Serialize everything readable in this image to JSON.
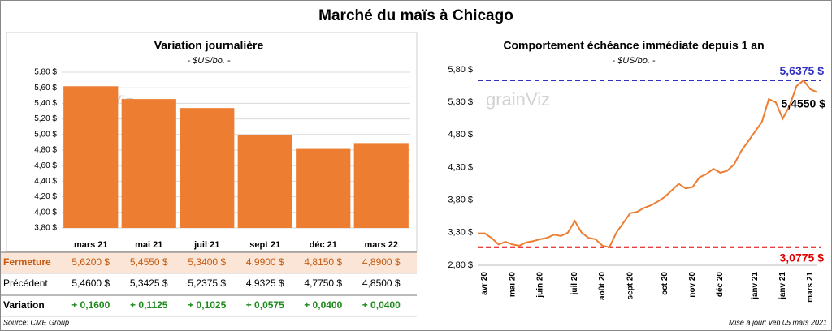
{
  "title": "Marché du maïs à Chicago",
  "chart_data": [
    {
      "type": "bar",
      "title": "Variation journalière",
      "subtitle": "- $US/bo. -",
      "watermark": "grainViz",
      "categories": [
        "mars 21",
        "mai 21",
        "juil 21",
        "sept 21",
        "déc 21",
        "mars 22"
      ],
      "series": [
        {
          "name": "Fermeture",
          "color": "#ed7d31",
          "values": [
            5.62,
            5.455,
            5.34,
            4.99,
            4.815,
            4.89
          ],
          "value_labels": [
            "5,6200 $",
            "5,4550 $",
            "5,3400 $",
            "4,9900 $",
            "4,8150 $",
            "4,8900 $"
          ]
        }
      ],
      "ylim": [
        3.8,
        5.8
      ],
      "yticks": [
        {
          "value": 3.8,
          "label": "3,80 $"
        },
        {
          "value": 4.0,
          "label": "4,00 $"
        },
        {
          "value": 4.2,
          "label": "4,20 $"
        },
        {
          "value": 4.4,
          "label": "4,40 $"
        },
        {
          "value": 4.6,
          "label": "4,60 $"
        },
        {
          "value": 4.8,
          "label": "4,80 $"
        },
        {
          "value": 5.0,
          "label": "5,00 $"
        },
        {
          "value": 5.2,
          "label": "5,20 $"
        },
        {
          "value": 5.4,
          "label": "5,40 $"
        },
        {
          "value": 5.6,
          "label": "5,60 $"
        },
        {
          "value": 5.8,
          "label": "5,80 $"
        }
      ],
      "grid": true
    },
    {
      "type": "line",
      "title": "Comportement échéance immédiate depuis 1 an",
      "subtitle": "- $US/bo. -",
      "watermark": "grainViz",
      "categories": [
        null,
        "avr 20",
        null,
        null,
        null,
        "mai 20",
        null,
        null,
        null,
        "juin 20",
        null,
        null,
        null,
        null,
        "juil 20",
        null,
        null,
        null,
        "août 20",
        null,
        null,
        null,
        "sept 20",
        null,
        null,
        null,
        null,
        "oct 20",
        null,
        null,
        null,
        "nov 20",
        null,
        null,
        null,
        "déc 20",
        null,
        null,
        null,
        null,
        "janv 21",
        null,
        null,
        null,
        "janv 21",
        null,
        null,
        null,
        "mars 21",
        null
      ],
      "series": [
        {
          "name": "Échéance immédiate",
          "color": "#ed7d31",
          "end_label": "5,4550 $",
          "values": [
            3.29,
            3.29,
            3.22,
            3.12,
            3.16,
            3.12,
            3.1,
            3.15,
            3.17,
            3.2,
            3.22,
            3.27,
            3.25,
            3.3,
            3.48,
            3.3,
            3.22,
            3.2,
            3.1,
            3.0775,
            3.3,
            3.45,
            3.6,
            3.62,
            3.68,
            3.72,
            3.78,
            3.85,
            3.95,
            4.05,
            3.98,
            4.0,
            4.15,
            4.2,
            4.28,
            4.22,
            4.25,
            4.35,
            4.55,
            4.7,
            4.85,
            5.0,
            5.35,
            5.3,
            5.05,
            5.25,
            5.55,
            5.6375,
            5.5,
            5.455
          ]
        }
      ],
      "reference_lines": [
        {
          "value": 5.6375,
          "label": "5,6375 $",
          "color": "#3030c0"
        },
        {
          "value": 3.0775,
          "label": "3,0775 $",
          "color": "#e00000"
        }
      ],
      "ylim": [
        2.8,
        5.8
      ],
      "yticks": [
        {
          "value": 2.8,
          "label": "2,80 $"
        },
        {
          "value": 3.3,
          "label": "3,30 $"
        },
        {
          "value": 3.8,
          "label": "3,80 $"
        },
        {
          "value": 4.3,
          "label": "4,30 $"
        },
        {
          "value": 4.8,
          "label": "4,80 $"
        },
        {
          "value": 5.3,
          "label": "5,30 $"
        },
        {
          "value": 5.8,
          "label": "5,80 $"
        }
      ],
      "grid": false
    }
  ],
  "table": {
    "rows": [
      {
        "label": "Précédent",
        "cells": [
          "5,4600 $",
          "5,3425 $",
          "5,2375 $",
          "4,9325 $",
          "4,7750 $",
          "4,8500 $"
        ]
      },
      {
        "label": "Variation",
        "cells": [
          "+ 0,1600",
          "+ 0,1125",
          "+ 0,1025",
          "+ 0,0575",
          "+ 0,0400",
          "+ 0,0400"
        ]
      }
    ]
  },
  "footer": {
    "source": "Source: CME Group",
    "updated": "Mise à jour: ven 05 mars 2021"
  }
}
